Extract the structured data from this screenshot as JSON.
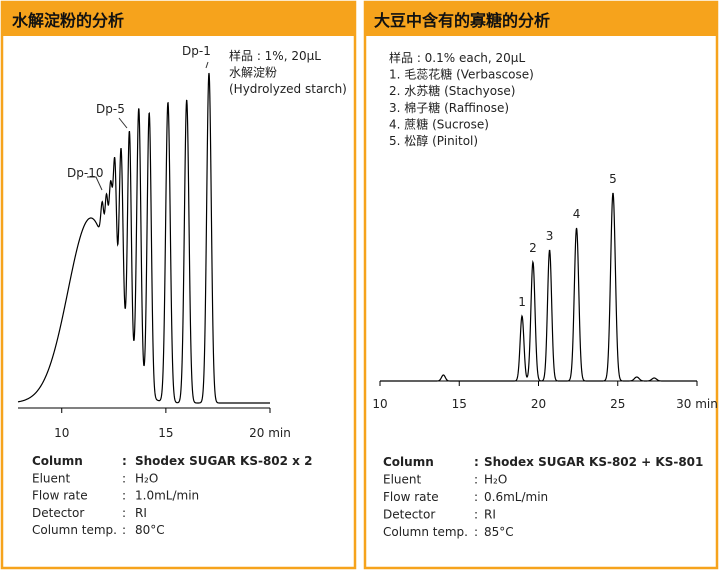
{
  "chart_data": [
    {
      "type": "chromatogram",
      "title": "水解淀粉的分析",
      "annotation": [
        "样品 : 1%, 20μL",
        "水解淀粉",
        "(Hydrolyzed starch)"
      ],
      "xlim": [
        7.9,
        20
      ],
      "xticks": [
        10,
        15,
        {
          "value": 20,
          "label": "20 min"
        }
      ],
      "peaks": {
        "x": [
          11.4,
          11.95,
          12.15,
          12.35,
          12.55,
          12.85,
          13.25,
          13.7,
          14.2,
          15.1,
          16.0,
          17.07
        ],
        "values": [
          185,
          37,
          58,
          88,
          133,
          177,
          227,
          274,
          283,
          300,
          303,
          330
        ],
        "widths": [
          1.1,
          0.07,
          0.07,
          0.08,
          0.08,
          0.09,
          0.09,
          0.1,
          0.1,
          0.11,
          0.11,
          0.11
        ],
        "labels": [
          null,
          "Dp-10",
          null,
          null,
          null,
          null,
          "Dp-5",
          null,
          null,
          null,
          null,
          "Dp-1"
        ]
      },
      "color": "#000000",
      "conditions": [
        [
          "Column",
          ":",
          "Shodex SUGAR KS-802 x 2"
        ],
        [
          "Eluent",
          ":",
          "H₂O"
        ],
        [
          "Flow rate",
          ":",
          "1.0mL/min"
        ],
        [
          "Detector",
          ":",
          "RI"
        ],
        [
          "Column temp.",
          ":",
          "80°C"
        ]
      ]
    },
    {
      "type": "chromatogram",
      "title": "大豆中含有的寡糖的分析",
      "annotation": [
        "样品 : 0.1% each, 20μL",
        "1. 毛蕊花糖 (Verbascose)",
        "2. 水苏糖 (Stachyose)",
        "3. 棉子糖 (Raffinose)",
        "4. 蔗糖 (Sucrose)",
        "5. 松醇 (Pinitol)"
      ],
      "xlim": [
        10,
        30
      ],
      "xticks": [
        10,
        15,
        20,
        25,
        {
          "value": 30,
          "label": "30 min"
        }
      ],
      "peaks": {
        "x": [
          14.0,
          18.96,
          19.65,
          20.7,
          22.4,
          24.7,
          26.2,
          27.3
        ],
        "values": [
          6,
          65,
          119,
          131,
          153,
          188,
          4,
          3
        ],
        "widths": [
          0.12,
          0.12,
          0.13,
          0.13,
          0.14,
          0.15,
          0.15,
          0.15
        ],
        "labels": [
          null,
          "1",
          "2",
          "3",
          "4",
          "5",
          null,
          null
        ]
      },
      "color": "#000000",
      "conditions": [
        [
          "Column",
          ":",
          "Shodex SUGAR KS-802 + KS-801"
        ],
        [
          "Eluent",
          ":",
          "H₂O"
        ],
        [
          "Flow rate",
          ":",
          "0.6mL/min"
        ],
        [
          "Detector",
          ":",
          "RI"
        ],
        [
          "Column temp.",
          ":",
          "85°C"
        ]
      ]
    }
  ]
}
